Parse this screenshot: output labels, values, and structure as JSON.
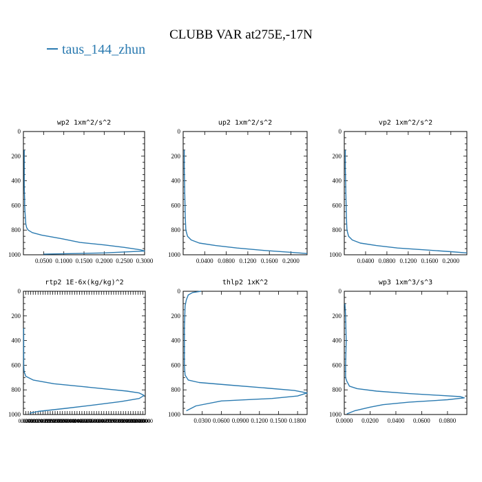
{
  "title": "CLUBB VAR at275E,-17N",
  "colors": {
    "series": "#2a7ab0",
    "axis": "#000000"
  },
  "chart_data": [
    {
      "type": "line",
      "title": "wp2   1xm^2/s^2",
      "ylim": [
        0,
        1000
      ],
      "y_ticks": [
        "0",
        "200",
        "400",
        "600",
        "800",
        "1000"
      ],
      "xlim": [
        0,
        0.3
      ],
      "x_ticks": [
        "0.0500",
        "0.1000",
        "0.1500",
        "0.2000",
        "0.2500",
        "0.3000"
      ],
      "x_tick_values": [
        0.05,
        0.1,
        0.15,
        0.2,
        0.25,
        0.3
      ],
      "series": [
        {
          "name": "taus_144_zhun",
          "x": [
            0.002,
            0.002,
            0.002,
            0.002,
            0.003,
            0.003,
            0.004,
            0.005,
            0.006,
            0.008,
            0.012,
            0.022,
            0.045,
            0.095,
            0.14,
            0.2,
            0.25,
            0.29,
            0.3,
            0.2,
            0.05
          ],
          "y": [
            150,
            250,
            350,
            450,
            550,
            600,
            650,
            700,
            750,
            780,
            800,
            820,
            840,
            870,
            900,
            920,
            940,
            960,
            970,
            985,
            995
          ]
        }
      ]
    },
    {
      "type": "line",
      "title": "up2   1xm^2/s^2",
      "ylim": [
        0,
        1000
      ],
      "y_ticks": [
        "0",
        "200",
        "400",
        "600",
        "800",
        "1000"
      ],
      "xlim": [
        0,
        0.23
      ],
      "x_ticks": [
        "0.0400",
        "0.0800",
        "0.1200",
        "0.1600",
        "0.2000"
      ],
      "x_tick_values": [
        0.04,
        0.08,
        0.12,
        0.16,
        0.2
      ],
      "series": [
        {
          "name": "taus_144_zhun",
          "x": [
            0.002,
            0.002,
            0.003,
            0.004,
            0.005,
            0.008,
            0.015,
            0.03,
            0.06,
            0.1,
            0.15,
            0.2,
            0.23
          ],
          "y": [
            150,
            300,
            500,
            700,
            800,
            850,
            880,
            905,
            925,
            945,
            965,
            980,
            990
          ]
        }
      ]
    },
    {
      "type": "line",
      "title": "vp2   1xm^2/s^2",
      "ylim": [
        0,
        1000
      ],
      "y_ticks": [
        "0",
        "200",
        "400",
        "600",
        "800",
        "1000"
      ],
      "xlim": [
        0,
        0.23
      ],
      "x_ticks": [
        "0.0400",
        "0.0800",
        "0.1200",
        "0.1600",
        "0.2000"
      ],
      "x_tick_values": [
        0.04,
        0.08,
        0.12,
        0.16,
        0.2
      ],
      "series": [
        {
          "name": "taus_144_zhun",
          "x": [
            0.002,
            0.002,
            0.003,
            0.004,
            0.005,
            0.008,
            0.015,
            0.03,
            0.06,
            0.1,
            0.15,
            0.2,
            0.23
          ],
          "y": [
            150,
            300,
            500,
            700,
            800,
            850,
            880,
            905,
            925,
            945,
            960,
            975,
            985
          ]
        }
      ]
    },
    {
      "type": "line",
      "title": "rtp2   1E-6x(kg/kg)^2",
      "ylim": [
        0,
        1000
      ],
      "y_ticks": [
        "0",
        "200",
        "400",
        "600",
        "800",
        "1000"
      ],
      "xlim": [
        0,
        1.0
      ],
      "x_ticks": [
        "0.0200",
        "0.0400",
        "0.0600",
        "0.0800",
        "0.1000",
        "0.1200",
        "0.1400",
        "0.1600",
        "0.1800",
        "0.2000",
        "0.2200",
        "0.2400",
        "0.2600",
        "0.2800",
        "0.3000",
        "0.3200",
        "0.3400",
        "0.3600",
        "0.3800",
        "0.4000",
        "0.4200",
        "0.4400",
        "0.4600",
        "0.4800",
        "0.5000",
        "0.5200",
        "0.5400",
        "0.5600",
        "0.5800",
        "0.6000",
        "0.6200",
        "0.6400",
        "0.6600",
        "0.6800",
        "0.7000",
        "0.7200",
        "0.7400",
        "0.7600",
        "0.7800",
        "0.8000",
        "0.8200",
        "0.8400",
        "0.8600",
        "0.8800",
        "0.9000",
        "0.9200",
        "0.9400",
        "0.9600",
        "0.9800",
        "1.0000"
      ],
      "x_tick_values": [
        0.02,
        0.04,
        0.06,
        0.08,
        0.1,
        0.12,
        0.14,
        0.16,
        0.18,
        0.2,
        0.22,
        0.24,
        0.26,
        0.28,
        0.3,
        0.32,
        0.34,
        0.36,
        0.38,
        0.4,
        0.42,
        0.44,
        0.46,
        0.48,
        0.5,
        0.52,
        0.54,
        0.56,
        0.58,
        0.6,
        0.62,
        0.64,
        0.66,
        0.68,
        0.7,
        0.72,
        0.74,
        0.76,
        0.78,
        0.8,
        0.82,
        0.84,
        0.86,
        0.88,
        0.9,
        0.92,
        0.94,
        0.96,
        0.98,
        1.0
      ],
      "series": [
        {
          "name": "taus_144_zhun",
          "x": [
            0.002,
            0.003,
            0.005,
            0.02,
            0.08,
            0.25,
            0.5,
            0.7,
            0.85,
            0.95,
            0.99,
            0.95,
            0.8,
            0.6,
            0.35,
            0.12,
            0.05
          ],
          "y": [
            300,
            600,
            650,
            690,
            720,
            750,
            775,
            795,
            810,
            825,
            845,
            870,
            895,
            920,
            950,
            975,
            990
          ]
        }
      ]
    },
    {
      "type": "line",
      "title": "thlp2   1xK^2",
      "ylim": [
        0,
        1000
      ],
      "y_ticks": [
        "0",
        "200",
        "400",
        "600",
        "800",
        "1000"
      ],
      "xlim": [
        0,
        0.195
      ],
      "x_ticks": [
        "0.0300",
        "0.0600",
        "0.0900",
        "0.1200",
        "0.1500",
        "0.1800"
      ],
      "x_tick_values": [
        0.03,
        0.06,
        0.09,
        0.12,
        0.15,
        0.18
      ],
      "series": [
        {
          "name": "taus_144_zhun",
          "x": [
            0.028,
            0.015,
            0.008,
            0.005,
            0.003,
            0.002,
            0.002,
            0.003,
            0.008,
            0.025,
            0.07,
            0.13,
            0.175,
            0.195,
            0.18,
            0.14,
            0.06,
            0.02,
            0.005
          ],
          "y": [
            0,
            10,
            30,
            70,
            120,
            300,
            600,
            680,
            720,
            740,
            760,
            785,
            805,
            825,
            850,
            870,
            890,
            930,
            970
          ]
        }
      ]
    },
    {
      "type": "line",
      "title": "wp3   1xm^3/s^3",
      "ylim": [
        0,
        1000
      ],
      "y_ticks": [
        "0",
        "200",
        "400",
        "600",
        "800",
        "1000"
      ],
      "xlim": [
        0,
        0.095
      ],
      "x_ticks": [
        "0.0000",
        "0.0200",
        "0.0400",
        "0.0600",
        "0.0800"
      ],
      "x_tick_values": [
        0.0,
        0.02,
        0.04,
        0.06,
        0.08
      ],
      "series": [
        {
          "name": "taus_144_zhun",
          "x": [
            0.0005,
            0.001,
            0.0015,
            0.001,
            0.001,
            0.002,
            0.004,
            0.01,
            0.025,
            0.05,
            0.075,
            0.09,
            0.093,
            0.08,
            0.05,
            0.03,
            0.02,
            0.008,
            0.002
          ],
          "y": [
            100,
            200,
            400,
            600,
            700,
            730,
            770,
            790,
            810,
            830,
            845,
            855,
            865,
            880,
            900,
            920,
            940,
            970,
            995
          ]
        }
      ]
    }
  ]
}
